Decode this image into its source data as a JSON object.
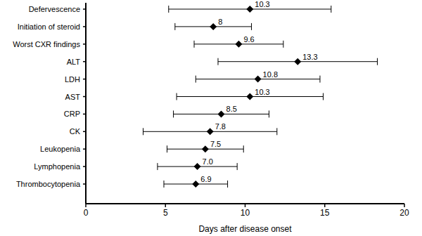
{
  "chart_data": {
    "type": "scatter",
    "orientation": "horizontal",
    "marker": "diamond",
    "color": "#000000",
    "data_labels": true,
    "categories": [
      "Defervescence",
      "Initiation of steroid",
      "Worst CXR findings",
      "ALT",
      "LDH",
      "AST",
      "CRP",
      "CK",
      "Leukopenia",
      "Lymphopenia",
      "Thrombocytopenia"
    ],
    "values": [
      10.3,
      8,
      9.6,
      13.3,
      10.8,
      10.3,
      8.5,
      7.8,
      7.5,
      7.0,
      6.9
    ],
    "value_labels": [
      "10.3",
      "8",
      "9.6",
      "13.3",
      "10.8",
      "10.3",
      "8.5",
      "7.8",
      "7.5",
      "7.0",
      "6.9"
    ],
    "errors": [
      5.1,
      2.4,
      2.8,
      5.0,
      3.9,
      4.6,
      3.0,
      4.2,
      2.4,
      2.5,
      2.0
    ],
    "x_label": "Days after disease onset",
    "xlim": [
      0,
      20
    ],
    "xticks": [
      0,
      5,
      10,
      15,
      20
    ]
  }
}
